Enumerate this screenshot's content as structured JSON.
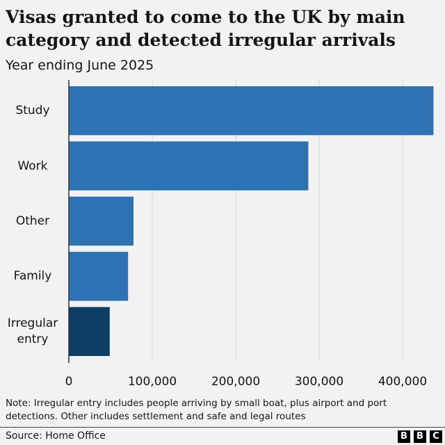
{
  "chart_data": {
    "type": "barh",
    "title": "Visas granted to come to the UK by main category and detected irregular arrivals",
    "subtitle": "Year ending June 2025",
    "categories": [
      "Study",
      "Work",
      "Other",
      "Family",
      "Irregular entry"
    ],
    "values": [
      437000,
      287000,
      77500,
      71000,
      49000
    ],
    "colors": [
      "#2e72b4",
      "#2e72b4",
      "#2e72b4",
      "#2e72b4",
      "#0c3d63"
    ],
    "xlim": [
      0,
      437500
    ],
    "xticks": [
      0,
      {
        "value": 100000,
        "label": "100,000"
      },
      {
        "value": 200000,
        "label": "200,000"
      },
      {
        "value": 300000,
        "label": "300,000"
      },
      {
        "value": 400000,
        "label": "400,000"
      }
    ],
    "grid": true,
    "note": "Note: Irregular entry includes people arriving by small boat, plus airport and port detections. Other includes settlement and safe and legal routes",
    "source": "Source: Home Office",
    "logo": [
      "B",
      "B",
      "C"
    ]
  }
}
